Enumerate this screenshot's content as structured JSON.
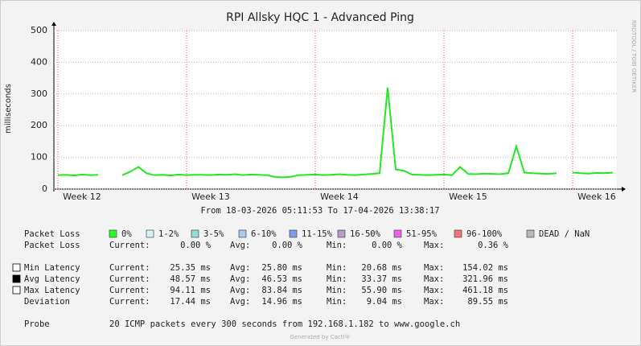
{
  "chart_data": {
    "type": "line",
    "title": "RPI Allsky HQC 1 - Advanced Ping",
    "y_label": "milliseconds",
    "watermark": "RRDTOOL / TOBI OETIKER",
    "footer": "Generated by Cacti®",
    "categories": [
      null,
      null,
      null,
      "Week 12",
      null,
      null,
      null,
      null,
      null,
      null,
      null,
      null,
      null,
      null,
      null,
      null,
      null,
      null,
      null,
      "Week 13",
      null,
      null,
      null,
      null,
      null,
      null,
      null,
      null,
      null,
      null,
      null,
      null,
      null,
      null,
      null,
      "Week 14",
      null,
      null,
      null,
      null,
      null,
      null,
      null,
      null,
      null,
      null,
      null,
      null,
      null,
      null,
      null,
      "Week 15",
      null,
      null,
      null,
      null,
      null,
      null,
      null,
      null,
      null,
      null,
      null,
      null,
      null,
      null,
      null,
      "Week 16",
      null,
      null
    ],
    "series": [
      {
        "color": "#22e822",
        "values": [
          44,
          45,
          43,
          46,
          44,
          45,
          null,
          null,
          44,
          55,
          70,
          50,
          44,
          45,
          43,
          46,
          44,
          45,
          45,
          44,
          46,
          45,
          47,
          44,
          46,
          45,
          44,
          38,
          37,
          39,
          44,
          45,
          46,
          44,
          45,
          47,
          45,
          44,
          46,
          48,
          50,
          320,
          62,
          58,
          46,
          45,
          44,
          45,
          46,
          44,
          70,
          48,
          47,
          49,
          48,
          47,
          50,
          135,
          52,
          50,
          49,
          48,
          50,
          null,
          52,
          50,
          49,
          51,
          50,
          52
        ]
      }
    ],
    "ylim": [
      0,
      500
    ],
    "yticks": [
      0,
      100,
      200,
      300,
      400,
      500
    ],
    "grid": true
  },
  "summary": {
    "period": "From 18-03-2026 05:11:53 To 17-04-2026 13:38:17",
    "loss_legend": {
      "label": "Packet Loss",
      "items": [
        {
          "label": "0%",
          "color": "#26ff26"
        },
        {
          "label": "1-2%",
          "color": "#d2f4f4"
        },
        {
          "label": "3-5%",
          "color": "#8fdcdc"
        },
        {
          "label": "6-10%",
          "color": "#a8c8ec"
        },
        {
          "label": "11-15%",
          "color": "#7f9ee6"
        },
        {
          "label": "16-50%",
          "color": "#b89ac8"
        },
        {
          "label": "51-95%",
          "color": "#f060f0"
        },
        {
          "label": "96-100%",
          "color": "#f07878"
        },
        {
          "label": "DEAD / NaN",
          "color": "#b8b8b8"
        }
      ]
    },
    "rows": [
      {
        "swatch": null,
        "cells": [
          "Packet Loss",
          "Current:",
          "0.00 %",
          "Avg:",
          "0.00 %",
          "Min:",
          "0.00 %",
          "Max:",
          "0.36 %"
        ]
      },
      {
        "swatch": "#ffffff",
        "cells": [
          "Min Latency",
          "Current:",
          "25.35 ms",
          "Avg:",
          "25.80 ms",
          "Min:",
          "20.68 ms",
          "Max:",
          "154.02 ms"
        ]
      },
      {
        "swatch": "#000000",
        "cells": [
          "Avg Latency",
          "Current:",
          "48.57 ms",
          "Avg:",
          "46.53 ms",
          "Min:",
          "33.37 ms",
          "Max:",
          "321.96 ms"
        ]
      },
      {
        "swatch": "#ffffff",
        "cells": [
          "Max Latency",
          "Current:",
          "94.11 ms",
          "Avg:",
          "83.84 ms",
          "Min:",
          "55.90 ms",
          "Max:",
          "461.18 ms"
        ]
      },
      {
        "swatch": null,
        "cells": [
          "Deviation",
          "Current:",
          "17.44 ms",
          "Avg:",
          "14.96 ms",
          "Min:",
          "9.04 ms",
          "Max:",
          "89.55 ms"
        ]
      }
    ],
    "probe": {
      "label": "Probe",
      "text": "20 ICMP packets every 300 seconds from 192.168.1.182 to www.google.ch"
    }
  }
}
